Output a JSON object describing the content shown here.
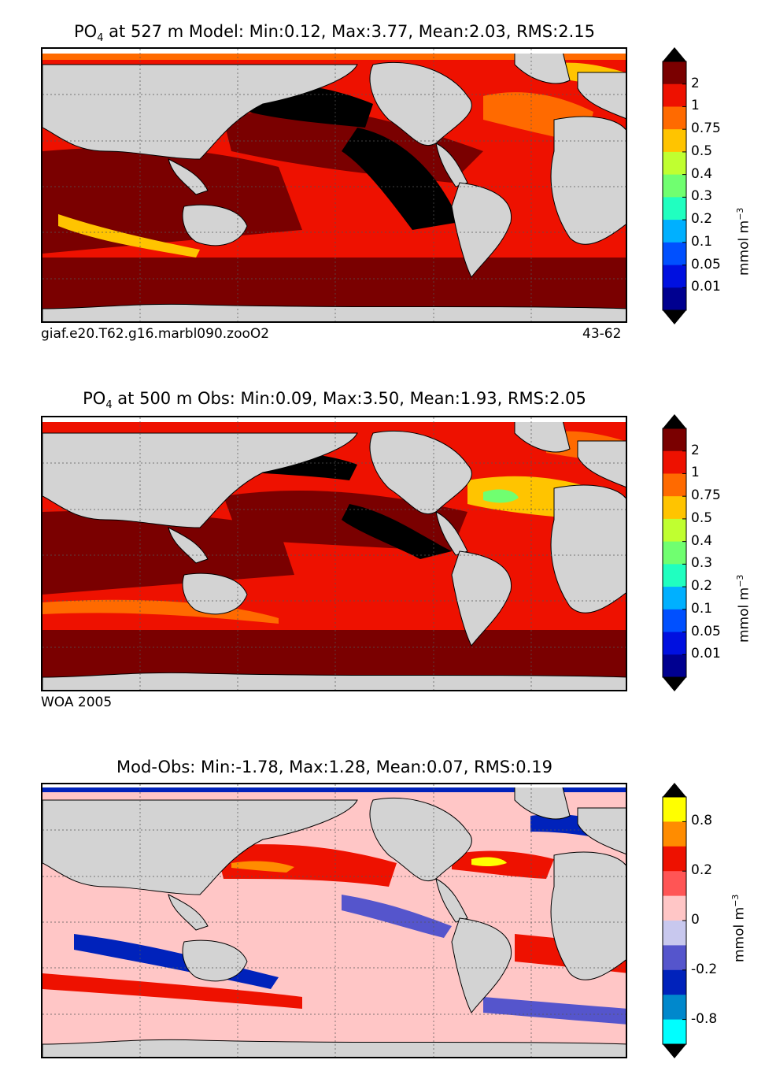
{
  "panels": [
    {
      "id": "model",
      "title_prefix": "PO",
      "title_sub": "4",
      "title_rest": " at 527 m Model: Min:0.12, Max:3.77, Mean:2.03, RMS:2.15",
      "caption_left": "giaf.e20.T62.g16.marbl090.zooO2",
      "caption_right": "43-62",
      "field_level": "Model"
    },
    {
      "id": "obs",
      "title_prefix": "PO",
      "title_sub": "4",
      "title_rest": " at 500 m Obs: Min:0.09, Max:3.50, Mean:1.93, RMS:2.05",
      "caption_left": "WOA 2005",
      "caption_right": "",
      "field_level": "Obs"
    },
    {
      "id": "diff",
      "title_prefix": "",
      "title_sub": "",
      "title_rest": "Mod-Obs: Min:-1.78, Max:1.28, Mean:0.07, RMS:0.19",
      "caption_left": "",
      "caption_right": "",
      "field_level": "Diff"
    }
  ],
  "colorbars": {
    "concentration": {
      "unit_text": "mmol m",
      "unit_sup": "−3",
      "tick_labels": [
        "2",
        "1",
        "0.75",
        "0.5",
        "0.4",
        "0.3",
        "0.2",
        "0.1",
        "0.05",
        "0.01"
      ],
      "colors": [
        "#7a0000",
        "#ee1100",
        "#ff6a00",
        "#ffc400",
        "#c0ff30",
        "#70ff70",
        "#20ffc0",
        "#00b0ff",
        "#0050ff",
        "#0010e0",
        "#000090"
      ],
      "over_color": "#000000",
      "under_color": "#000000"
    },
    "difference": {
      "unit_text": "mmol m",
      "unit_sup": "−3",
      "tick_labels": [
        "0.8",
        "0.2",
        "0",
        "-0.2",
        "-0.8"
      ],
      "colors": [
        "#ffff00",
        "#ff8c00",
        "#ee1100",
        "#ff5555",
        "#ffc6c6",
        "#c8c8ee",
        "#5555cc",
        "#0022bb",
        "#0088cc",
        "#00ffff"
      ],
      "over_color": "#000000",
      "under_color": "#000000"
    }
  },
  "chart_data": [
    {
      "type": "heatmap",
      "title": "PO4 at 527 m Model: Min:0.12, Max:3.77, Mean:2.03, RMS:2.15",
      "variable": "PO4",
      "depth": "527 m",
      "source": "Model",
      "stats": {
        "min": 0.12,
        "max": 3.77,
        "mean": 2.03,
        "rms": 2.15
      },
      "colorbar_levels": [
        0.01,
        0.05,
        0.1,
        0.2,
        0.3,
        0.4,
        0.5,
        0.75,
        1,
        2
      ],
      "unit": "mmol m^-3",
      "annotations": [
        "giaf.e20.T62.g16.marbl090.zooO2",
        "43-62"
      ]
    },
    {
      "type": "heatmap",
      "title": "PO4 at 500 m Obs: Min:0.09, Max:3.50, Mean:1.93, RMS:2.05",
      "variable": "PO4",
      "depth": "500 m",
      "source": "Obs",
      "stats": {
        "min": 0.09,
        "max": 3.5,
        "mean": 1.93,
        "rms": 2.05
      },
      "colorbar_levels": [
        0.01,
        0.05,
        0.1,
        0.2,
        0.3,
        0.4,
        0.5,
        0.75,
        1,
        2
      ],
      "unit": "mmol m^-3",
      "annotations": [
        "WOA 2005"
      ]
    },
    {
      "type": "heatmap",
      "title": "Mod-Obs: Min:-1.78, Max:1.28, Mean:0.07, RMS:0.19",
      "variable": "PO4 difference",
      "source": "Mod-Obs",
      "stats": {
        "min": -1.78,
        "max": 1.28,
        "mean": 0.07,
        "rms": 0.19
      },
      "colorbar_levels": [
        -0.8,
        -0.2,
        0,
        0.2,
        0.8
      ],
      "unit": "mmol m^-3"
    }
  ]
}
